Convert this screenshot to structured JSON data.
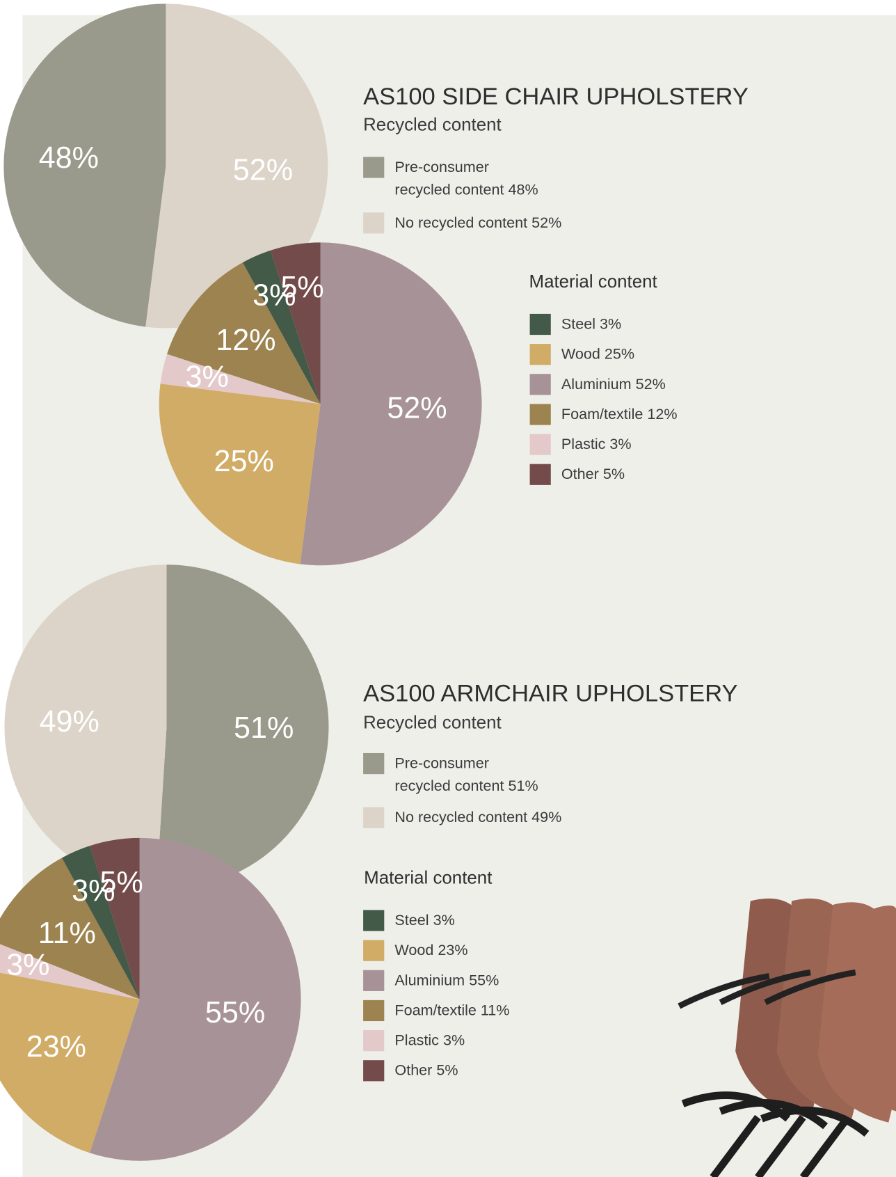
{
  "chart_data": [
    {
      "type": "pie",
      "title": "AS100 SIDE CHAIR UPHOLSTERY",
      "subtitle": "Recycled content",
      "categories": [
        "Pre-consumer recycled content 48%",
        "No recycled content 52%"
      ],
      "values": [
        48,
        52
      ],
      "value_labels": [
        "48%",
        "52%"
      ],
      "colors": [
        "#999a8b",
        "#dcd4c8"
      ]
    },
    {
      "type": "pie",
      "title": "Material content",
      "categories": [
        "Steel 3%",
        "Wood 25%",
        "Aluminium 52%",
        "Foam/textile 12%",
        "Plastic 3%",
        "Other 5%"
      ],
      "values": [
        3,
        25,
        52,
        12,
        3,
        5
      ],
      "value_labels": [
        "3%",
        "25%",
        "52%",
        "12%",
        "3%",
        "5%"
      ],
      "colors": [
        "#435a48",
        "#d0ac66",
        "#a79297",
        "#9c834f",
        "#e4c9cb",
        "#744b4b"
      ]
    },
    {
      "type": "pie",
      "title": "AS100 ARMCHAIR UPHOLSTERY",
      "subtitle": "Recycled content",
      "categories": [
        "Pre-consumer recycled content 51%",
        "No recycled content 49%"
      ],
      "values": [
        51,
        49
      ],
      "value_labels": [
        "51%",
        "49%"
      ],
      "colors": [
        "#999a8b",
        "#dcd4c8"
      ]
    },
    {
      "type": "pie",
      "title": "Material content",
      "categories": [
        "Steel 3%",
        "Wood 23%",
        "Aluminium 55%",
        "Foam/textile 11%",
        "Plastic 3%",
        "Other 5%"
      ],
      "values": [
        3,
        23,
        55,
        11,
        3,
        5
      ],
      "value_labels": [
        "3%",
        "23%",
        "55%",
        "11%",
        "3%",
        "5%"
      ],
      "colors": [
        "#435a48",
        "#d0ac66",
        "#a79297",
        "#9c834f",
        "#e4c9cb",
        "#744b4b"
      ]
    }
  ]
}
